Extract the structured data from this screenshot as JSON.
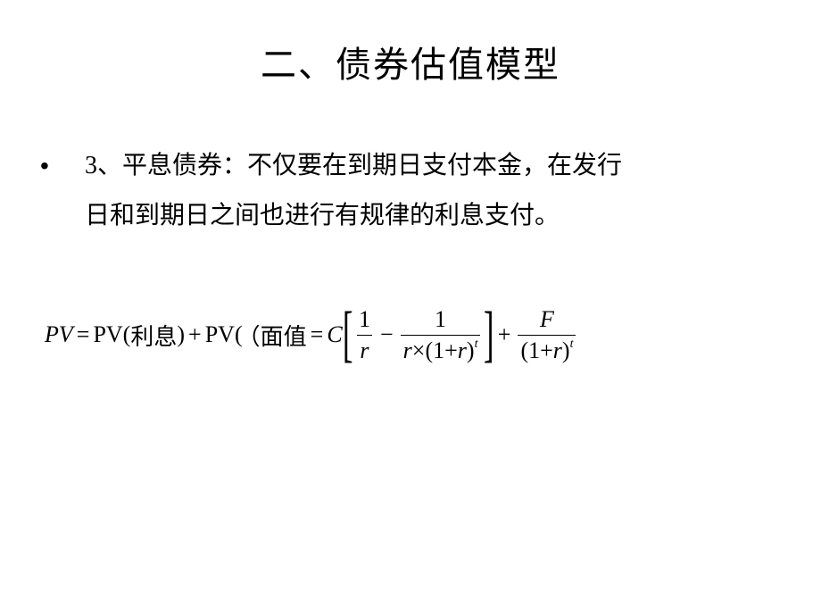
{
  "title": "二、债券估值模型",
  "bullet_number": "3、",
  "bullet_marker": "•",
  "para_line1": "平息债券：不仅要在到期日支付本金，在发行",
  "para_line2": "日和到期日之间也进行有规律的利息支付。",
  "formula": {
    "pv_var": "PV",
    "eq": "=",
    "pv_fn": "PV(",
    "interest_cn": "利息",
    "close_paren": ")",
    "plus": "+",
    "facevalue_open": "（",
    "facevalue_cn": "面值",
    "C": "C",
    "one": "1",
    "r": "r",
    "times": "×",
    "lp": "(",
    "rp": ")",
    "t": "t",
    "minus": "−",
    "F": "F",
    "lbracket": "[",
    "rbracket": "]"
  },
  "style": {
    "background": "#ffffff",
    "text_color": "#000000",
    "title_fontsize": 40,
    "body_fontsize": 28,
    "formula_fontsize": 26
  }
}
